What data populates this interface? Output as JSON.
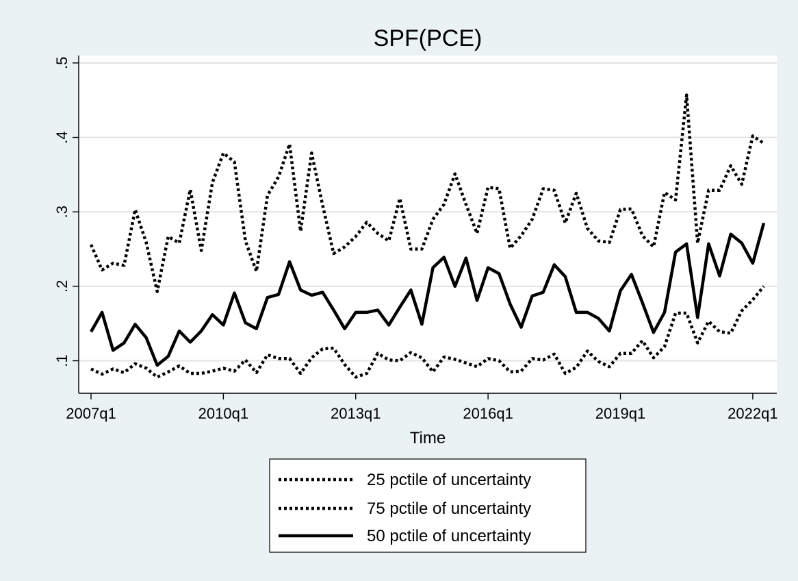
{
  "chart_data": {
    "type": "line",
    "title": "SPF(PCE)",
    "xlabel": "Time",
    "ylabel": "",
    "x_start": "2007q1",
    "x_end": "2022q2",
    "xlim": [
      "2007q1",
      "2022q2"
    ],
    "ylim": [
      0.06,
      0.51
    ],
    "x_ticks": [
      "2007q1",
      "2010q1",
      "2013q1",
      "2016q1",
      "2019q1",
      "2022q1"
    ],
    "y_ticks": [
      0.1,
      0.2,
      0.3,
      0.4,
      0.5
    ],
    "y_tick_labels": [
      ".1",
      ".2",
      ".3",
      ".4",
      ".5"
    ],
    "grid": true,
    "legend_position": "bottom",
    "series": [
      {
        "name": "25 pctile of uncertainty",
        "style": "dotted",
        "color": "#000000",
        "values": [
          0.089,
          0.082,
          0.089,
          0.084,
          0.096,
          0.09,
          0.078,
          0.085,
          0.093,
          0.083,
          0.083,
          0.086,
          0.09,
          0.086,
          0.101,
          0.084,
          0.108,
          0.103,
          0.103,
          0.083,
          0.104,
          0.116,
          0.117,
          0.095,
          0.078,
          0.083,
          0.11,
          0.101,
          0.1,
          0.111,
          0.104,
          0.085,
          0.105,
          0.102,
          0.097,
          0.092,
          0.103,
          0.1,
          0.085,
          0.086,
          0.103,
          0.101,
          0.109,
          0.083,
          0.091,
          0.113,
          0.099,
          0.092,
          0.11,
          0.11,
          0.127,
          0.104,
          0.119,
          0.164,
          0.164,
          0.124,
          0.153,
          0.139,
          0.137,
          0.167,
          0.182,
          0.2
        ]
      },
      {
        "name": "75 pctile of uncertainty",
        "style": "dotted",
        "color": "#000000",
        "values": [
          0.256,
          0.222,
          0.231,
          0.228,
          0.303,
          0.259,
          0.193,
          0.267,
          0.258,
          0.33,
          0.248,
          0.339,
          0.379,
          0.367,
          0.261,
          0.22,
          0.322,
          0.347,
          0.391,
          0.274,
          0.379,
          0.309,
          0.244,
          0.253,
          0.267,
          0.286,
          0.271,
          0.261,
          0.318,
          0.25,
          0.25,
          0.29,
          0.31,
          0.351,
          0.31,
          0.271,
          0.333,
          0.331,
          0.251,
          0.268,
          0.29,
          0.331,
          0.329,
          0.285,
          0.325,
          0.278,
          0.261,
          0.259,
          0.303,
          0.304,
          0.268,
          0.253,
          0.326,
          0.316,
          0.457,
          0.258,
          0.329,
          0.329,
          0.362,
          0.337,
          0.402,
          0.392
        ]
      },
      {
        "name": "50 pctile of uncertainty",
        "style": "solid",
        "color": "#000000",
        "values": [
          0.139,
          0.165,
          0.114,
          0.124,
          0.149,
          0.131,
          0.094,
          0.106,
          0.14,
          0.125,
          0.14,
          0.162,
          0.148,
          0.191,
          0.151,
          0.143,
          0.185,
          0.189,
          0.233,
          0.195,
          0.188,
          0.192,
          0.168,
          0.143,
          0.165,
          0.165,
          0.168,
          0.148,
          0.172,
          0.195,
          0.149,
          0.225,
          0.239,
          0.2,
          0.238,
          0.181,
          0.225,
          0.217,
          0.176,
          0.145,
          0.187,
          0.192,
          0.229,
          0.213,
          0.165,
          0.165,
          0.157,
          0.14,
          0.194,
          0.216,
          0.178,
          0.138,
          0.165,
          0.246,
          0.257,
          0.158,
          0.257,
          0.214,
          0.27,
          0.258,
          0.231,
          0.285
        ]
      }
    ]
  }
}
